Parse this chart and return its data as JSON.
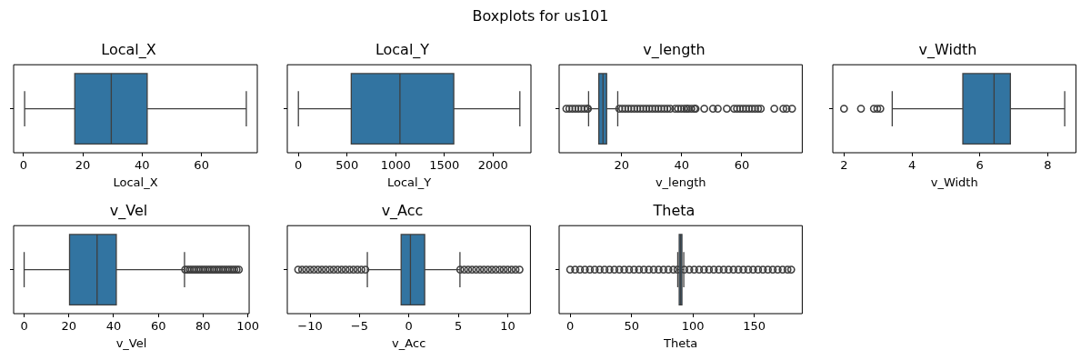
{
  "chart_data": [
    {
      "type": "box",
      "title": "Local_X",
      "xlabel": "Local_X",
      "orientation": "horizontal",
      "categories": [
        null
      ],
      "tick_labels": "x",
      "marker": "circle",
      "annotations": [
        "Boxplots for us101"
      ],
      "xlim": [
        -3.3,
        78.8
      ],
      "xticks": [
        0,
        20,
        40,
        60
      ],
      "series": [
        {
          "color": "#3274a1",
          "boxes": [
            {
              "low": 0.4,
              "q1": 17.3,
              "median": 29.6,
              "q3": 41.7,
              "high": 75.1
            }
          ]
        }
      ]
    },
    {
      "type": "box",
      "title": "Local_Y",
      "xlabel": "Local_Y",
      "orientation": "horizontal",
      "categories": [
        null
      ],
      "tick_labels": "x",
      "marker": "circle",
      "xlim": [
        -114,
        2389
      ],
      "xticks": [
        0,
        500,
        1000,
        1500,
        2000
      ],
      "series": [
        {
          "color": "#3274a1",
          "boxes": [
            {
              "low": 0,
              "q1": 543,
              "median": 1043,
              "q3": 1596,
              "high": 2275
            }
          ]
        }
      ]
    },
    {
      "type": "box",
      "title": "v_length",
      "xlabel": "v_length",
      "orientation": "horizontal",
      "categories": [
        null
      ],
      "tick_labels": "x",
      "marker": "circle",
      "xlim": [
        -0.8,
        80.1
      ],
      "xticks": [
        20,
        40,
        60
      ],
      "series": [
        {
          "color": "#3274a1",
          "boxes": [
            {
              "low": 9.0,
              "q1": 12.4,
              "median": 13.8,
              "q3": 15.0,
              "high": 18.7,
              "outliers": [
                1.6,
                2.6,
                3.6,
                4.6,
                5.6,
                6.6,
                7.6,
                8.6,
                8.8,
                19.2,
                20.2,
                21.2,
                22.2,
                23.2,
                24.2,
                25.2,
                26.2,
                27.2,
                28.2,
                29.2,
                30.2,
                31.2,
                32.2,
                33.2,
                34.2,
                35.2,
                36.2,
                37.8,
                38.8,
                39.8,
                40.8,
                41.6,
                42.2,
                43.2,
                44.2,
                44.6,
                47.5,
                50.4,
                52,
                55,
                57.4,
                58.4,
                59.4,
                60.4,
                61.4,
                62.4,
                63.4,
                64.4,
                65.4,
                66.3,
                70.8,
                73.8,
                74.9,
                76.7
              ]
            }
          ]
        }
      ]
    },
    {
      "type": "box",
      "title": "v_Width",
      "xlabel": "v_Width",
      "orientation": "horizontal",
      "categories": [
        null
      ],
      "tick_labels": "x",
      "marker": "circle",
      "xlim": [
        1.67,
        8.83
      ],
      "xticks": [
        2,
        4,
        6,
        8
      ],
      "series": [
        {
          "color": "#3274a1",
          "boxes": [
            {
              "low": 3.42,
              "q1": 5.5,
              "median": 6.42,
              "q3": 6.9,
              "high": 8.5,
              "outliers": [
                2.0,
                2.5,
                2.88,
                2.98,
                3.07
              ]
            }
          ]
        }
      ]
    },
    {
      "type": "box",
      "title": "v_Vel",
      "xlabel": "v_Vel",
      "orientation": "horizontal",
      "categories": [
        null
      ],
      "tick_labels": "x",
      "marker": "circle",
      "xlim": [
        -4.7,
        100.6
      ],
      "xticks": [
        0,
        20,
        40,
        60,
        80,
        100
      ],
      "series": [
        {
          "color": "#3274a1",
          "boxes": [
            {
              "low": 0,
              "q1": 20.3,
              "median": 32.6,
              "q3": 41.2,
              "high": 71.7,
              "outliers": [
                72,
                73,
                74,
                75,
                76,
                77,
                78,
                79,
                80,
                81,
                82,
                83,
                84,
                85,
                86,
                87,
                88,
                89,
                90,
                91,
                92,
                93,
                94,
                95,
                96
              ]
            }
          ]
        }
      ]
    },
    {
      "type": "box",
      "title": "v_Acc",
      "xlabel": "v_Acc",
      "orientation": "horizontal",
      "categories": [
        null
      ],
      "tick_labels": "x",
      "marker": "circle",
      "xlim": [
        -12.3,
        12.3
      ],
      "xticks": [
        {
          "value": -10,
          "label": "−10"
        },
        {
          "value": -5,
          "label": "−5"
        },
        0,
        5,
        10
      ],
      "series": [
        {
          "color": "#3274a1",
          "boxes": [
            {
              "low": -4.2,
              "q1": -0.78,
              "median": 0.16,
              "q3": 1.6,
              "high": 5.17,
              "outliers": [
                -11.2,
                -10.8,
                -10.4,
                -10,
                -9.6,
                -9.2,
                -8.8,
                -8.4,
                -8,
                -7.6,
                -7.2,
                -6.8,
                -6.4,
                -6,
                -5.6,
                -5.2,
                -4.8,
                -4.4,
                5.2,
                5.6,
                6,
                6.4,
                6.8,
                7.2,
                7.6,
                8,
                8.4,
                8.8,
                9.2,
                9.6,
                10,
                10.4,
                10.8,
                11.2
              ]
            }
          ]
        }
      ]
    },
    {
      "type": "box",
      "title": "Theta",
      "xlabel": "Theta",
      "orientation": "horizontal",
      "categories": [
        null
      ],
      "tick_labels": "x",
      "marker": "circle",
      "xlim": [
        -9,
        189
      ],
      "xticks": [
        0,
        50,
        100,
        150
      ],
      "series": [
        {
          "color": "#3274a1",
          "boxes": [
            {
              "low": 87.6,
              "q1": 88.8,
              "median": 90,
              "q3": 91,
              "high": 92.5,
              "outliers": [
                0,
                4,
                8,
                12,
                16,
                20,
                24,
                28,
                32,
                36,
                40,
                44,
                48,
                52,
                56,
                60,
                64,
                68,
                72,
                76,
                80,
                84,
                87.4,
                93,
                97,
                101,
                105,
                109,
                113,
                117,
                121,
                125,
                129,
                133,
                137,
                141,
                145,
                149,
                153,
                157,
                161,
                165,
                169,
                173,
                177,
                180
              ]
            }
          ]
        }
      ]
    }
  ]
}
